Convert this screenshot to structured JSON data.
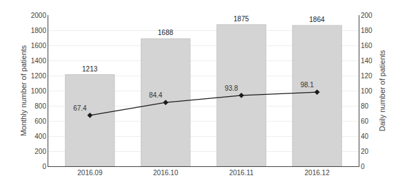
{
  "chart_data": {
    "type": "bar",
    "categories": [
      "2016.09",
      "2016.10",
      "2016.11",
      "2016.12"
    ],
    "series": [
      {
        "type": "bar",
        "color": "#d4d4d4",
        "values": [
          1213,
          1688,
          1875,
          1864
        ],
        "data_labels": true
      },
      {
        "type": "line",
        "axis": "y2",
        "color": "#1a1a1a",
        "marker": "diamond",
        "values": [
          67.4,
          84.4,
          93.8,
          98.1
        ],
        "data_labels": true
      }
    ],
    "ylabel": "Monthly number of patients",
    "y2label": "Daily number of patients",
    "ylim": [
      0,
      2000
    ],
    "yticks": [
      0,
      200,
      400,
      600,
      800,
      1000,
      1200,
      1400,
      1600,
      1800,
      2000
    ],
    "y2lim": [
      0,
      200.0
    ],
    "y2ticks": [
      0.0,
      20.0,
      40.0,
      60.0,
      80.0,
      100.0,
      120.0,
      140.0,
      160.0,
      180.0,
      200.0
    ],
    "grid": true
  }
}
